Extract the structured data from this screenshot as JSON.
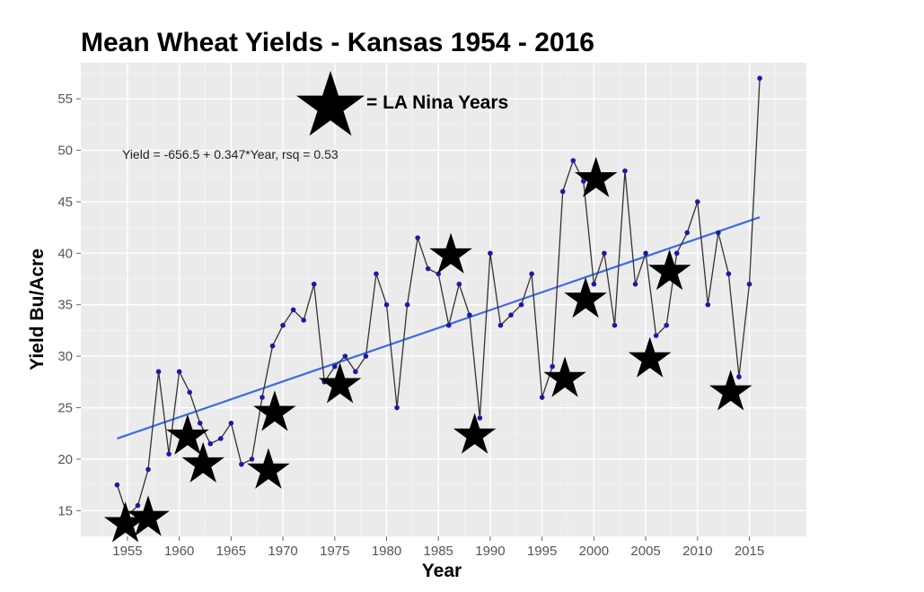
{
  "chart_data": {
    "type": "line",
    "title": "Mean Wheat Yields - Kansas 1954 - 2016",
    "xlabel": "Year",
    "ylabel": "Yield Bu/Acre",
    "xlim": [
      1950.5,
      2020.5
    ],
    "ylim": [
      12.5,
      58.5
    ],
    "xticks": [
      1955,
      1960,
      1965,
      1970,
      1975,
      1980,
      1985,
      1990,
      1995,
      2000,
      2005,
      2010,
      2015
    ],
    "yticks": [
      15,
      20,
      25,
      30,
      35,
      40,
      45,
      50,
      55
    ],
    "grid": true,
    "series": [
      {
        "color": "#1a1aa8",
        "line_color": "#333333",
        "x": [
          1954,
          1955,
          1956,
          1957,
          1958,
          1959,
          1960,
          1961,
          1962,
          1963,
          1964,
          1965,
          1966,
          1967,
          1968,
          1969,
          1970,
          1971,
          1972,
          1973,
          1974,
          1975,
          1976,
          1977,
          1978,
          1979,
          1980,
          1981,
          1982,
          1983,
          1984,
          1985,
          1986,
          1987,
          1988,
          1989,
          1990,
          1991,
          1992,
          1993,
          1994,
          1995,
          1996,
          1997,
          1998,
          1999,
          2000,
          2001,
          2002,
          2003,
          2004,
          2005,
          2006,
          2007,
          2008,
          2009,
          2010,
          2011,
          2012,
          2013,
          2014,
          2015,
          2016
        ],
        "y": [
          17.5,
          14.5,
          15.5,
          19,
          28.5,
          20.5,
          28.5,
          26.5,
          23.5,
          21.5,
          22,
          23.5,
          19.5,
          20,
          26,
          31,
          33,
          34.5,
          33.5,
          37,
          27.5,
          29,
          30,
          28.5,
          30,
          38,
          35,
          25,
          35,
          41.5,
          38.5,
          38,
          33,
          37,
          34,
          24,
          40,
          33,
          34,
          35,
          38,
          26,
          29,
          46,
          49,
          47,
          37,
          40,
          33,
          48,
          37,
          40,
          32,
          33,
          40,
          42,
          45,
          35,
          42,
          38,
          28,
          37,
          57
        ]
      }
    ],
    "trend": {
      "color": "#3f6ae0",
      "x": [
        1954,
        2016
      ],
      "y": [
        22.0,
        43.5
      ],
      "label": "Yield = -656.5 + 0.347*Year, rsq = 0.53"
    },
    "la_nina": {
      "legend_label": "= LA Nina Years",
      "marker": "black-star-icon",
      "x": [
        1954.8,
        1957,
        1960.8,
        1962.3,
        1968.6,
        1969.2,
        1975.5,
        1986.2,
        1988.5,
        1997.2,
        1999.2,
        2000.2,
        2005.4,
        2007.3,
        2013.2
      ],
      "y": [
        13.7,
        14.3,
        22.2,
        19.5,
        18.9,
        24.5,
        27.2,
        39.8,
        22.3,
        27.8,
        35.5,
        47.2,
        29.7,
        38.2,
        26.5
      ]
    }
  }
}
